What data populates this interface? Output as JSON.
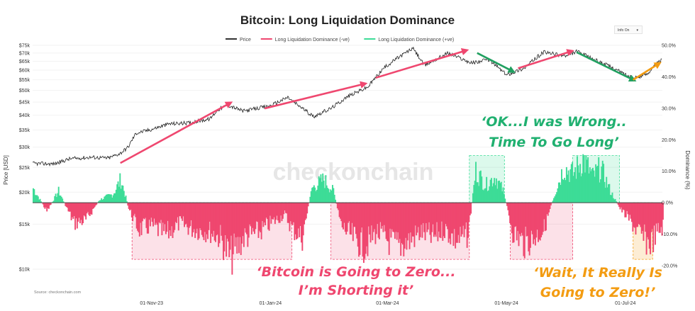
{
  "chart_data": {
    "type": "line",
    "title": "Bitcoin: Long Liquidation Dominance",
    "legend": {
      "placement": "top-center",
      "items": [
        {
          "name": "Price",
          "color": "#333333"
        },
        {
          "name": "Long Liquidation Dominance (-ve)",
          "color": "#ef476f"
        },
        {
          "name": "Long Liquidation Dominance (+ve)",
          "color": "#3ddc97"
        }
      ]
    },
    "info_dropdown": "Info On",
    "watermark": "checkonchain",
    "source": "Source: checkonchain.com",
    "y_left": {
      "label": "Price [USD]",
      "scale": "log",
      "range": [
        10000,
        75000
      ],
      "ticks": [
        {
          "value": 75000,
          "label": "$75k"
        },
        {
          "value": 70000,
          "label": "$70k"
        },
        {
          "value": 65000,
          "label": "$65k"
        },
        {
          "value": 60000,
          "label": "$60k"
        },
        {
          "value": 55000,
          "label": "$55k"
        },
        {
          "value": 50000,
          "label": "$50k"
        },
        {
          "value": 45000,
          "label": "$45k"
        },
        {
          "value": 40000,
          "label": "$40k"
        },
        {
          "value": 35000,
          "label": "$35k"
        },
        {
          "value": 30000,
          "label": "$30k"
        },
        {
          "value": 25000,
          "label": "$25k"
        },
        {
          "value": 20000,
          "label": "$20k"
        },
        {
          "value": 15000,
          "label": "$15k"
        },
        {
          "value": 10000,
          "label": "$10k"
        }
      ]
    },
    "y_right": {
      "label": "Dominance (%)",
      "range": [
        -20,
        50
      ],
      "ticks": [
        {
          "value": 50,
          "label": "50.0%"
        },
        {
          "value": 40,
          "label": "40.0%"
        },
        {
          "value": 30,
          "label": "30.0%"
        },
        {
          "value": 20,
          "label": "20.0%"
        },
        {
          "value": 10,
          "label": "10.0%"
        },
        {
          "value": 0,
          "label": "0.0%"
        },
        {
          "value": -10,
          "label": "-10.0%"
        },
        {
          "value": -20,
          "label": "-20.0%"
        }
      ]
    },
    "x_axis": {
      "type": "date",
      "range": [
        "2023-09-01",
        "2024-07-20"
      ],
      "ticks": [
        {
          "value": "2023-11-01",
          "label": "01-Nov-23"
        },
        {
          "value": "2024-01-01",
          "label": "01-Jan-24"
        },
        {
          "value": "2024-03-01",
          "label": "01-Mar-24"
        },
        {
          "value": "2024-05-01",
          "label": "01-May-24"
        },
        {
          "value": "2024-07-01",
          "label": "01-Jul-24"
        }
      ]
    },
    "series": [
      {
        "name": "Price",
        "points": [
          [
            "2023-09-01",
            25900
          ],
          [
            "2023-09-12",
            25800
          ],
          [
            "2023-09-20",
            27000
          ],
          [
            "2023-10-01",
            27400
          ],
          [
            "2023-10-10",
            27200
          ],
          [
            "2023-10-16",
            28400
          ],
          [
            "2023-10-20",
            30000
          ],
          [
            "2023-10-24",
            34000
          ],
          [
            "2023-11-01",
            35200
          ],
          [
            "2023-11-10",
            37000
          ],
          [
            "2023-11-20",
            37300
          ],
          [
            "2023-12-01",
            38700
          ],
          [
            "2023-12-05",
            42000
          ],
          [
            "2023-12-10",
            43800
          ],
          [
            "2023-12-18",
            41500
          ],
          [
            "2024-01-01",
            43500
          ],
          [
            "2024-01-10",
            47000
          ],
          [
            "2024-01-12",
            45500
          ],
          [
            "2024-01-23",
            39500
          ],
          [
            "2024-02-01",
            42500
          ],
          [
            "2024-02-10",
            47500
          ],
          [
            "2024-02-20",
            51500
          ],
          [
            "2024-02-28",
            61000
          ],
          [
            "2024-03-05",
            66000
          ],
          [
            "2024-03-14",
            73000
          ],
          [
            "2024-03-20",
            62500
          ],
          [
            "2024-04-01",
            70000
          ],
          [
            "2024-04-13",
            64000
          ],
          [
            "2024-04-22",
            66000
          ],
          [
            "2024-05-01",
            57500
          ],
          [
            "2024-05-10",
            61000
          ],
          [
            "2024-05-20",
            70500
          ],
          [
            "2024-06-01",
            68000
          ],
          [
            "2024-06-06",
            71000
          ],
          [
            "2024-06-15",
            66000
          ],
          [
            "2024-06-25",
            61000
          ],
          [
            "2024-07-05",
            55500
          ],
          [
            "2024-07-12",
            58000
          ],
          [
            "2024-07-20",
            66500
          ]
        ]
      },
      {
        "name": "Long Liquidation Dominance",
        "note": "Positive values shown in green (+ve), negative values in red (-ve)",
        "points": [
          [
            "2023-09-01",
            5
          ],
          [
            "2023-09-08",
            -3
          ],
          [
            "2023-09-14",
            4
          ],
          [
            "2023-09-22",
            -7
          ],
          [
            "2023-09-28",
            -6
          ],
          [
            "2023-10-05",
            1
          ],
          [
            "2023-10-12",
            3
          ],
          [
            "2023-10-16",
            8
          ],
          [
            "2023-10-20",
            -2
          ],
          [
            "2023-10-25",
            -9
          ],
          [
            "2023-11-01",
            -8
          ],
          [
            "2023-11-08",
            -11
          ],
          [
            "2023-11-15",
            -7
          ],
          [
            "2023-11-22",
            -9
          ],
          [
            "2023-12-01",
            -10
          ],
          [
            "2023-12-06",
            -12
          ],
          [
            "2023-12-11",
            -19
          ],
          [
            "2023-12-18",
            -12
          ],
          [
            "2023-12-26",
            -10
          ],
          [
            "2024-01-01",
            -7
          ],
          [
            "2024-01-08",
            -4
          ],
          [
            "2024-01-12",
            -9
          ],
          [
            "2024-01-17",
            -12
          ],
          [
            "2024-01-22",
            5
          ],
          [
            "2024-01-28",
            8
          ],
          [
            "2024-02-02",
            4
          ],
          [
            "2024-02-06",
            -8
          ],
          [
            "2024-02-12",
            -12
          ],
          [
            "2024-02-18",
            -15
          ],
          [
            "2024-02-24",
            -10
          ],
          [
            "2024-03-01",
            -13
          ],
          [
            "2024-03-06",
            -15
          ],
          [
            "2024-03-12",
            -13
          ],
          [
            "2024-03-18",
            -10
          ],
          [
            "2024-03-24",
            -12
          ],
          [
            "2024-03-30",
            -9
          ],
          [
            "2024-04-05",
            -13
          ],
          [
            "2024-04-11",
            -11
          ],
          [
            "2024-04-15",
            11
          ],
          [
            "2024-04-20",
            6
          ],
          [
            "2024-04-25",
            9
          ],
          [
            "2024-04-29",
            4
          ],
          [
            "2024-05-04",
            -10
          ],
          [
            "2024-05-10",
            -14
          ],
          [
            "2024-05-15",
            -12
          ],
          [
            "2024-05-20",
            -9
          ],
          [
            "2024-05-25",
            2
          ],
          [
            "2024-05-30",
            12
          ],
          [
            "2024-06-04",
            10
          ],
          [
            "2024-06-09",
            15
          ],
          [
            "2024-06-14",
            9
          ],
          [
            "2024-06-18",
            12
          ],
          [
            "2024-06-23",
            4
          ],
          [
            "2024-06-28",
            -2
          ],
          [
            "2024-07-03",
            -6
          ],
          [
            "2024-07-08",
            -11
          ],
          [
            "2024-07-13",
            -14
          ],
          [
            "2024-07-20",
            -8
          ]
        ]
      }
    ],
    "trend_arrows": [
      {
        "from": [
          "2023-10-16",
          26000
        ],
        "to": [
          "2023-12-11",
          44500
        ],
        "color": "#ef476f"
      },
      {
        "from": [
          "2023-12-29",
          42500
        ],
        "to": [
          "2024-02-18",
          53000
        ],
        "color": "#ef476f"
      },
      {
        "from": [
          "2024-02-24",
          56000
        ],
        "to": [
          "2024-04-10",
          71500
        ],
        "color": "#ef476f"
      },
      {
        "from": [
          "2024-04-16",
          70000
        ],
        "to": [
          "2024-05-04",
          59500
        ],
        "color": "#20a060"
      },
      {
        "from": [
          "2024-05-07",
          61000
        ],
        "to": [
          "2024-06-03",
          71000
        ],
        "color": "#ef476f"
      },
      {
        "from": [
          "2024-06-06",
          70500
        ],
        "to": [
          "2024-07-05",
          55000
        ],
        "color": "#20a060"
      },
      {
        "from": [
          "2024-07-05",
          55000
        ],
        "to": [
          "2024-07-18",
          63500
        ],
        "color": "#f39c12"
      }
    ],
    "regions": [
      {
        "start": "2023-10-22",
        "end": "2024-01-12",
        "sign": "negative"
      },
      {
        "start": "2024-02-01",
        "end": "2024-04-12",
        "sign": "negative"
      },
      {
        "start": "2024-04-12",
        "end": "2024-04-30",
        "sign": "positive"
      },
      {
        "start": "2024-05-03",
        "end": "2024-06-04",
        "sign": "negative"
      },
      {
        "start": "2024-06-04",
        "end": "2024-06-28",
        "sign": "positive"
      },
      {
        "start": "2024-07-05",
        "end": "2024-07-15",
        "sign": "negative-orange"
      }
    ],
    "annotations": [
      {
        "text": "‘Bitcoin is Going to Zero...",
        "color": "#ef476f"
      },
      {
        "text": "I’m Shorting it’",
        "color": "#ef476f"
      },
      {
        "text": "‘OK...I was Wrong..",
        "color": "#20b070"
      },
      {
        "text": "Time To Go Long’",
        "color": "#20b070"
      },
      {
        "text": "‘Wait, It Really Is",
        "color": "#f39c12"
      },
      {
        "text": "Going to Zero!’",
        "color": "#f39c12"
      }
    ]
  }
}
